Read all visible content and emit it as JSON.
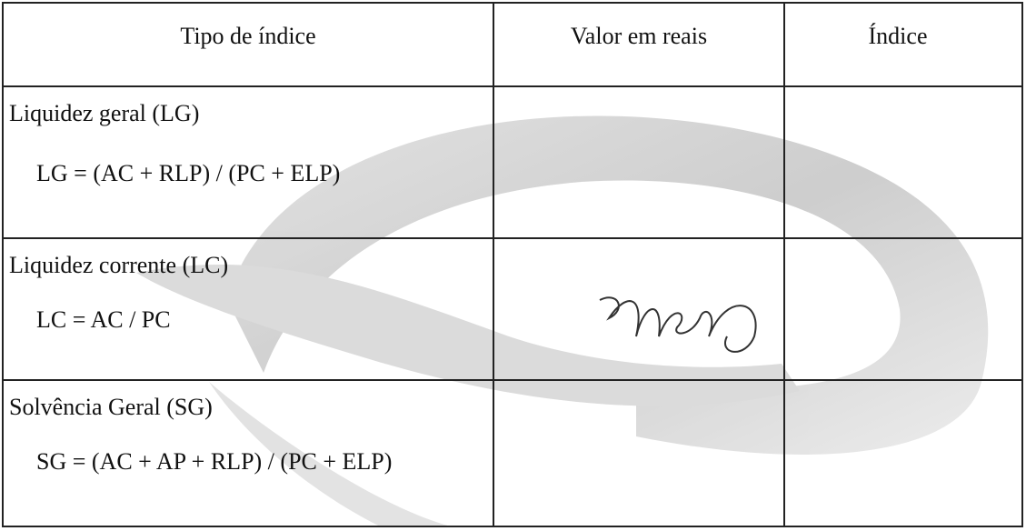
{
  "table": {
    "headers": [
      "Tipo de índice",
      "Valor em reais",
      "Índice"
    ],
    "rows": [
      {
        "title": "Liquidez geral (LG)",
        "formula": "LG = (AC + RLP) / (PC + ELP)"
      },
      {
        "title": "Liquidez corrente (LC)",
        "formula": "LC = AC / PC"
      },
      {
        "title": "Solvência Geral (SG)",
        "formula": "SG = (AC + AP + RLP) / (PC + ELP)"
      }
    ]
  }
}
